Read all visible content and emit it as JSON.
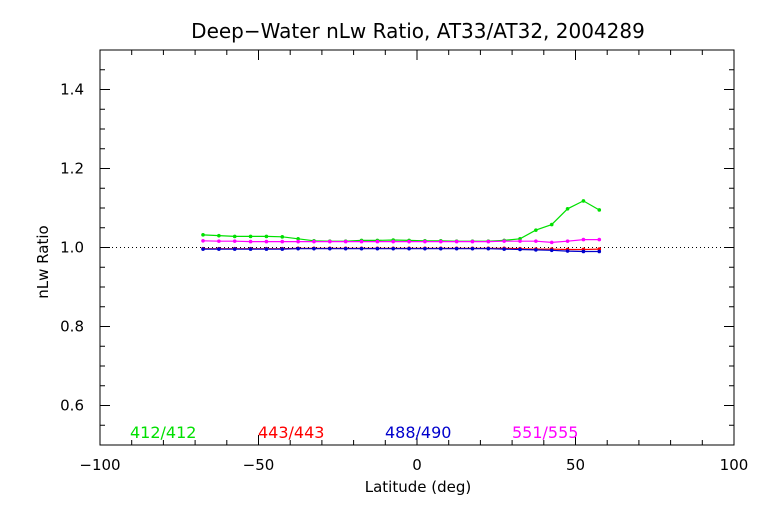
{
  "chart_data": {
    "type": "line",
    "title": "Deep−Water nLw Ratio, AT33/AT32, 2004289",
    "xlabel": "Latitude (deg)",
    "ylabel": "nLw Ratio",
    "xlim": [
      -100,
      100
    ],
    "ylim": [
      0.5,
      1.5
    ],
    "x_ticks": [
      -100,
      -50,
      0,
      50,
      100
    ],
    "x_tick_labels": [
      "−100",
      "−50",
      "0",
      "50",
      "100"
    ],
    "y_ticks": [
      0.6,
      0.8,
      1.0,
      1.2,
      1.4
    ],
    "y_tick_labels": [
      "0.6",
      "0.8",
      "1.0",
      "1.2",
      "1.4"
    ],
    "reference_line": 1.0,
    "grid": false,
    "legend_position": "bottom inside plot",
    "series": [
      {
        "name": "412/412",
        "color": "#00e000",
        "x": [
          -67.5,
          -62.5,
          -57.5,
          -52.5,
          -47.5,
          -42.5,
          -37.5,
          -32.5,
          -27.5,
          -22.5,
          -17.5,
          -12.5,
          -7.5,
          -2.5,
          2.5,
          7.5,
          12.5,
          17.5,
          22.5,
          27.5,
          32.5,
          37.5,
          42.5,
          47.5,
          52.5,
          57.5
        ],
        "values": [
          1.032,
          1.03,
          1.028,
          1.028,
          1.028,
          1.027,
          1.022,
          1.017,
          1.016,
          1.016,
          1.018,
          1.018,
          1.019,
          1.018,
          1.017,
          1.017,
          1.016,
          1.016,
          1.016,
          1.018,
          1.022,
          1.044,
          1.058,
          1.098,
          1.118,
          1.095
        ]
      },
      {
        "name": "443/443",
        "color": "#ff0000",
        "x": [
          -67.5,
          -62.5,
          -57.5,
          -52.5,
          -47.5,
          -42.5,
          -37.5,
          -32.5,
          -27.5,
          -22.5,
          -17.5,
          -12.5,
          -7.5,
          -2.5,
          2.5,
          7.5,
          12.5,
          17.5,
          22.5,
          27.5,
          32.5,
          37.5,
          42.5,
          47.5,
          52.5,
          57.5
        ],
        "values": [
          0.997,
          0.997,
          0.997,
          0.997,
          0.997,
          0.997,
          0.998,
          0.998,
          0.998,
          0.998,
          0.998,
          0.998,
          0.998,
          0.998,
          0.998,
          0.998,
          0.998,
          0.998,
          0.998,
          0.998,
          0.997,
          0.996,
          0.996,
          0.995,
          0.995,
          0.996
        ]
      },
      {
        "name": "488/490",
        "color": "#0000cc",
        "x": [
          -67.5,
          -62.5,
          -57.5,
          -52.5,
          -47.5,
          -42.5,
          -37.5,
          -32.5,
          -27.5,
          -22.5,
          -17.5,
          -12.5,
          -7.5,
          -2.5,
          2.5,
          7.5,
          12.5,
          17.5,
          22.5,
          27.5,
          32.5,
          37.5,
          42.5,
          47.5,
          52.5,
          57.5
        ],
        "values": [
          0.996,
          0.996,
          0.996,
          0.996,
          0.996,
          0.996,
          0.997,
          0.997,
          0.997,
          0.997,
          0.997,
          0.997,
          0.997,
          0.997,
          0.997,
          0.997,
          0.997,
          0.997,
          0.997,
          0.996,
          0.995,
          0.994,
          0.993,
          0.991,
          0.99,
          0.99
        ]
      },
      {
        "name": "551/555",
        "color": "#ff00ff",
        "x": [
          -67.5,
          -62.5,
          -57.5,
          -52.5,
          -47.5,
          -42.5,
          -37.5,
          -32.5,
          -27.5,
          -22.5,
          -17.5,
          -12.5,
          -7.5,
          -2.5,
          2.5,
          7.5,
          12.5,
          17.5,
          22.5,
          27.5,
          32.5,
          37.5,
          42.5,
          47.5,
          52.5,
          57.5
        ],
        "values": [
          1.017,
          1.016,
          1.016,
          1.015,
          1.015,
          1.015,
          1.015,
          1.015,
          1.015,
          1.015,
          1.015,
          1.015,
          1.015,
          1.015,
          1.015,
          1.015,
          1.015,
          1.015,
          1.015,
          1.016,
          1.016,
          1.016,
          1.013,
          1.016,
          1.02,
          1.02
        ]
      }
    ]
  }
}
